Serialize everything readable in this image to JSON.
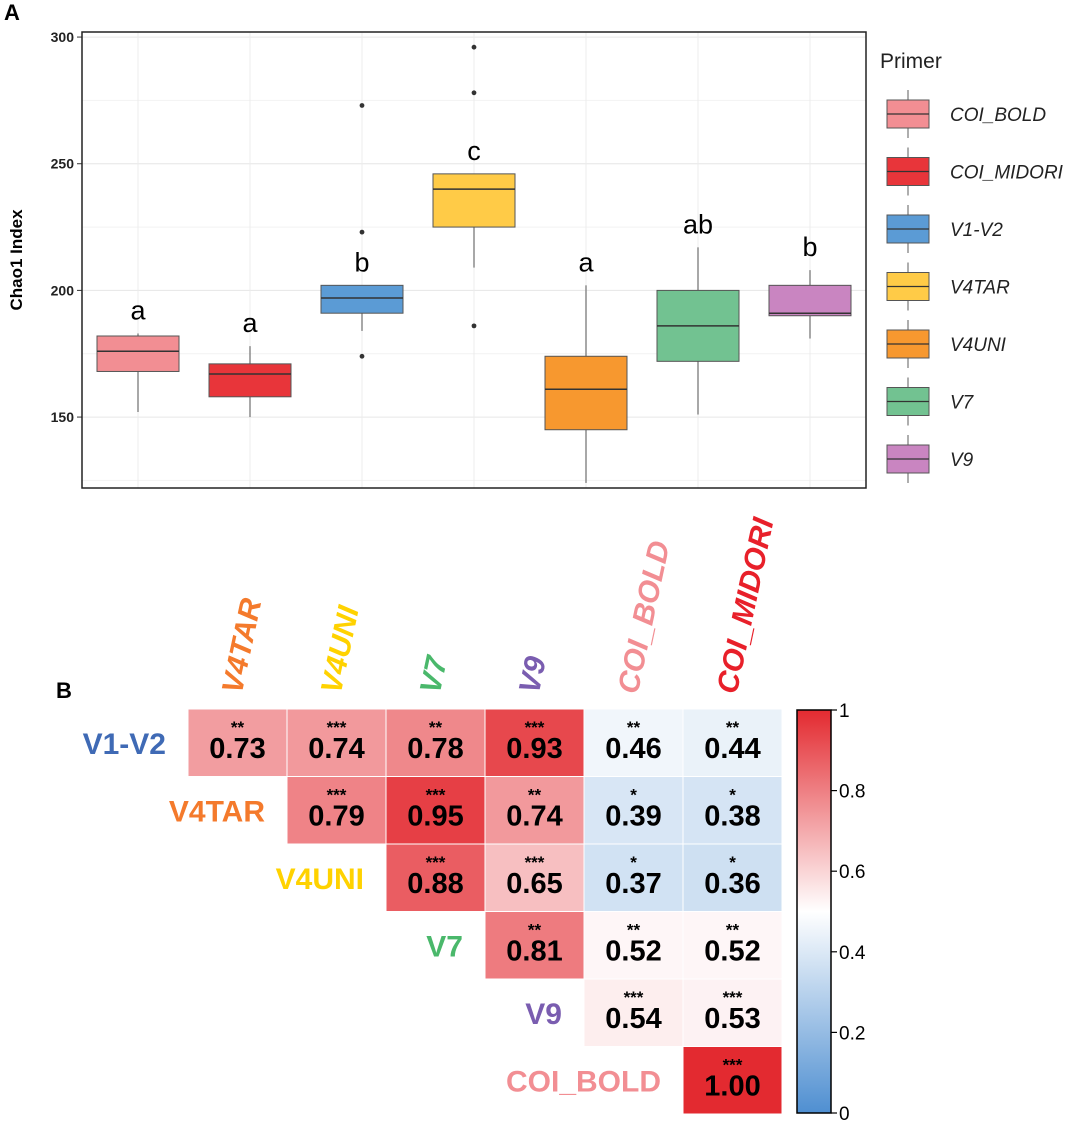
{
  "panel_a_label": "A",
  "panel_b_label": "B",
  "chart_data": [
    {
      "type": "box",
      "ylabel": "Chao1 Index",
      "xlabel": "",
      "ylim": [
        122,
        302
      ],
      "yticks": [
        150,
        200,
        250,
        300
      ],
      "legend": {
        "title": "Primer",
        "placement": "right"
      },
      "series": [
        {
          "name": "COI_BOLD",
          "color": "#f28e93",
          "min": 152,
          "q1": 168,
          "median": 176,
          "q3": 182,
          "max": 183,
          "outliers": [],
          "letter": "a"
        },
        {
          "name": "COI_MIDORI",
          "color": "#e8353a",
          "min": 150,
          "q1": 158,
          "median": 167,
          "q3": 171,
          "max": 178,
          "outliers": [],
          "letter": "a"
        },
        {
          "name": "V1-V2",
          "color": "#5b9bd5",
          "min": 184,
          "q1": 191,
          "median": 197,
          "q3": 202,
          "max": 202,
          "outliers": [
            174,
            223,
            273
          ],
          "letter": "b"
        },
        {
          "name": "V4TAR",
          "color": "#ffcb47",
          "min": 209,
          "q1": 225,
          "median": 240,
          "q3": 246,
          "max": 246,
          "outliers": [
            186,
            278,
            296
          ],
          "letter": "c"
        },
        {
          "name": "V4UNI",
          "color": "#f7982f",
          "min": 124,
          "q1": 145,
          "median": 161,
          "q3": 174,
          "max": 202,
          "outliers": [],
          "letter": "a"
        },
        {
          "name": "V7",
          "color": "#72c291",
          "min": 151,
          "q1": 172,
          "median": 186,
          "q3": 200,
          "max": 217,
          "outliers": [],
          "letter": "ab"
        },
        {
          "name": "V9",
          "color": "#c985c1",
          "min": 181,
          "q1": 190,
          "median": 191,
          "q3": 202,
          "max": 208,
          "outliers": [],
          "letter": "b"
        }
      ]
    },
    {
      "type": "heatmap",
      "colorbar": {
        "min": 0,
        "max": 1,
        "ticks": [
          "0",
          "0.2",
          "0.4",
          "0.6",
          "0.8",
          "1"
        ],
        "low_color": "#4f8fd1",
        "mid_color": "#ffffff",
        "high_color": "#e32a30"
      },
      "columns": [
        {
          "label": "V4TAR",
          "color": "#f47a2c"
        },
        {
          "label": "V4UNI",
          "color": "#ffd200"
        },
        {
          "label": "V7",
          "color": "#4ab86b"
        },
        {
          "label": "V9",
          "color": "#7a5db0"
        },
        {
          "label": "COI_BOLD",
          "color": "#f28e93"
        },
        {
          "label": "COI_MIDORI",
          "color": "#e8202a"
        }
      ],
      "rows": [
        {
          "label": "V1-V2",
          "color": "#3f6ab5",
          "start": 0,
          "cells": [
            {
              "v": "0.73",
              "s": "**"
            },
            {
              "v": "0.74",
              "s": "***"
            },
            {
              "v": "0.78",
              "s": "**"
            },
            {
              "v": "0.93",
              "s": "***"
            },
            {
              "v": "0.46",
              "s": "**"
            },
            {
              "v": "0.44",
              "s": "**"
            }
          ]
        },
        {
          "label": "V4TAR",
          "color": "#f47a2c",
          "start": 1,
          "cells": [
            {
              "v": "0.79",
              "s": "***"
            },
            {
              "v": "0.95",
              "s": "***"
            },
            {
              "v": "0.74",
              "s": "**"
            },
            {
              "v": "0.39",
              "s": "*"
            },
            {
              "v": "0.38",
              "s": "*"
            }
          ]
        },
        {
          "label": "V4UNI",
          "color": "#ffd200",
          "start": 2,
          "cells": [
            {
              "v": "0.88",
              "s": "***"
            },
            {
              "v": "0.65",
              "s": "***"
            },
            {
              "v": "0.37",
              "s": "*"
            },
            {
              "v": "0.36",
              "s": "*"
            }
          ]
        },
        {
          "label": "V7",
          "color": "#4ab86b",
          "start": 3,
          "cells": [
            {
              "v": "0.81",
              "s": "**"
            },
            {
              "v": "0.52",
              "s": "**"
            },
            {
              "v": "0.52",
              "s": "**"
            }
          ]
        },
        {
          "label": "V9",
          "color": "#7a5db0",
          "start": 4,
          "cells": [
            {
              "v": "0.54",
              "s": "***"
            },
            {
              "v": "0.53",
              "s": "***"
            }
          ]
        },
        {
          "label": "COI_BOLD",
          "color": "#f28e93",
          "start": 5,
          "cells": [
            {
              "v": "1.00",
              "s": "***"
            }
          ]
        }
      ]
    }
  ]
}
